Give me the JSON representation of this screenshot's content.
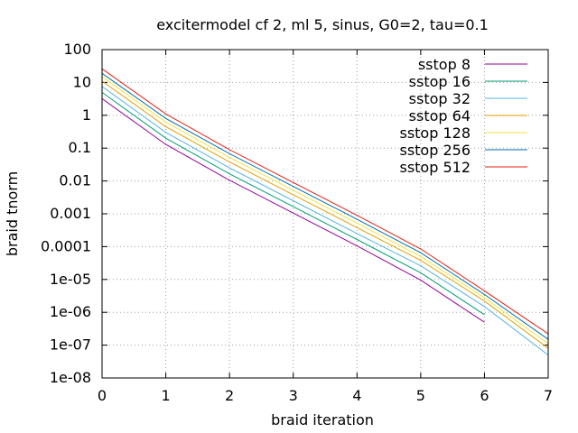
{
  "chart_data": {
    "type": "line",
    "title": "excitermodel cf 2, ml 5, sinus, G0=2, tau=0.1",
    "xlabel": "braid iteration",
    "ylabel": "braid tnorm",
    "xlim": [
      0,
      7
    ],
    "ylim": [
      1e-08,
      100
    ],
    "yscale": "log",
    "grid": true,
    "legend_position": "top-right",
    "x_ticks": [
      "0",
      "1",
      "2",
      "3",
      "4",
      "5",
      "6",
      "7"
    ],
    "y_ticks": [
      "1e-08",
      "1e-07",
      "1e-06",
      "1e-05",
      "0.0001",
      "0.001",
      "0.01",
      "0.1",
      "1",
      "10",
      "100"
    ],
    "series": [
      {
        "name": "sstop 8",
        "color": "#94009b",
        "x": [
          0,
          1,
          2,
          3,
          4,
          5,
          6
        ],
        "y": [
          3.2,
          0.13,
          0.0105,
          0.00105,
          0.000105,
          9.5e-06,
          5e-07
        ]
      },
      {
        "name": "sstop 16",
        "color": "#009e73",
        "x": [
          0,
          1,
          2,
          3,
          4,
          5,
          6
        ],
        "y": [
          5.0,
          0.2,
          0.0165,
          0.00165,
          0.000165,
          1.6e-05,
          8.5e-07
        ]
      },
      {
        "name": "sstop 32",
        "color": "#56b4e9",
        "x": [
          0,
          1,
          2,
          3,
          4,
          5,
          6,
          7
        ],
        "y": [
          7.5,
          0.3,
          0.025,
          0.0025,
          0.00025,
          2.6e-05,
          1.5e-06,
          5e-08
        ]
      },
      {
        "name": "sstop 64",
        "color": "#e69f00",
        "x": [
          0,
          1,
          2,
          3,
          4,
          5,
          6,
          7
        ],
        "y": [
          11,
          0.45,
          0.038,
          0.0038,
          0.00038,
          3.8e-05,
          2.2e-06,
          8e-08
        ]
      },
      {
        "name": "sstop 128",
        "color": "#f0e442",
        "x": [
          0,
          1,
          2,
          3,
          4,
          5,
          6,
          7
        ],
        "y": [
          15,
          0.62,
          0.052,
          0.0052,
          0.00052,
          5e-05,
          2.8e-06,
          1.1e-07
        ]
      },
      {
        "name": "sstop 256",
        "color": "#0072b2",
        "x": [
          0,
          1,
          2,
          3,
          4,
          5,
          6,
          7
        ],
        "y": [
          19,
          0.8,
          0.068,
          0.0068,
          0.00068,
          6.5e-05,
          3.5e-06,
          1.5e-07
        ]
      },
      {
        "name": "sstop 512",
        "color": "#e51e10",
        "x": [
          0,
          1,
          2,
          3,
          4,
          5,
          6,
          7
        ],
        "y": [
          26,
          1.1,
          0.09,
          0.009,
          0.0009,
          8.5e-05,
          4.5e-06,
          2.2e-07
        ]
      }
    ]
  }
}
